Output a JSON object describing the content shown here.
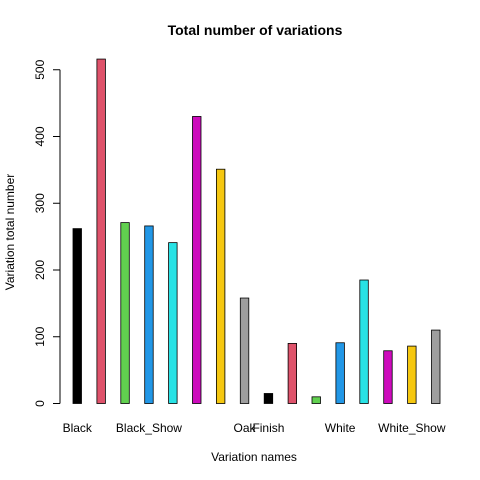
{
  "chart_data": {
    "type": "bar",
    "title": "Total number of variations",
    "xlabel": "Variation names",
    "ylabel": "Variation total number",
    "ylim": [
      0,
      530
    ],
    "yticks": [
      0,
      100,
      200,
      300,
      400,
      500
    ],
    "grid": false,
    "legend": "none",
    "bars": [
      {
        "label": "Black",
        "value": 262,
        "color": "#000000"
      },
      {
        "label": "",
        "value": 516,
        "color": "#DF536B"
      },
      {
        "label": "",
        "value": 271,
        "color": "#61D04F"
      },
      {
        "label": "Black_Show",
        "value": 266,
        "color": "#2297E6"
      },
      {
        "label": "",
        "value": 241,
        "color": "#28E2E5"
      },
      {
        "label": "",
        "value": 430,
        "color": "#CD0BBC"
      },
      {
        "label": "",
        "value": 351,
        "color": "#F5C710"
      },
      {
        "label": "Oak",
        "value": 158,
        "color": "#9E9E9E"
      },
      {
        "label": "Finish",
        "value": 15,
        "color": "#000000"
      },
      {
        "label": "",
        "value": 90,
        "color": "#DF536B"
      },
      {
        "label": "",
        "value": 10,
        "color": "#61D04F"
      },
      {
        "label": "White",
        "value": 91,
        "color": "#2297E6"
      },
      {
        "label": "",
        "value": 185,
        "color": "#28E2E5"
      },
      {
        "label": "",
        "value": 79,
        "color": "#CD0BBC"
      },
      {
        "label": "White_Show",
        "value": 86,
        "color": "#F5C710"
      },
      {
        "label": "",
        "value": 110,
        "color": "#9E9E9E"
      }
    ]
  }
}
